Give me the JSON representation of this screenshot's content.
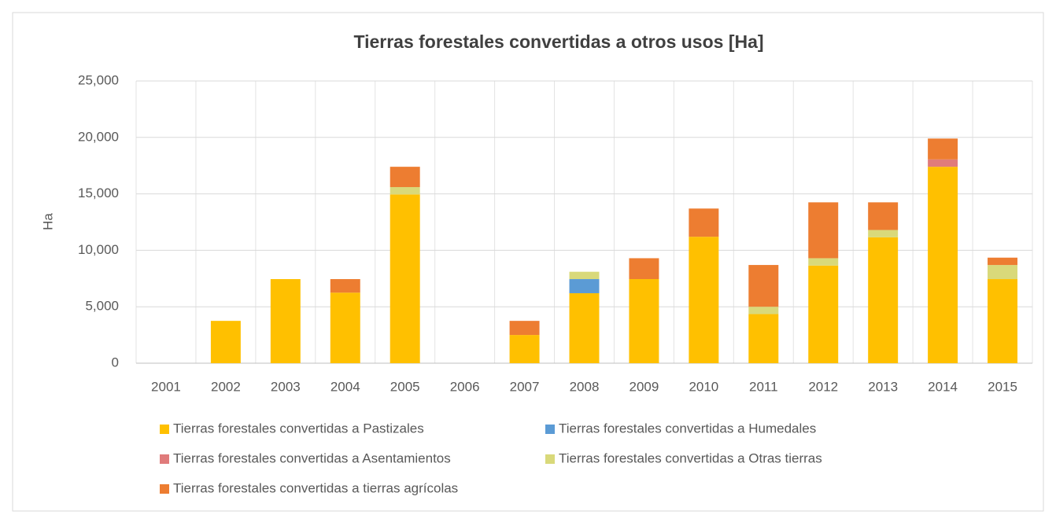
{
  "chart_data": {
    "type": "stacked_bar",
    "title": "Tierras forestales convertidas a otros usos [Ha]",
    "y_label": "Ha",
    "categories": [
      "2001",
      "2002",
      "2003",
      "2004",
      "2005",
      "2006",
      "2007",
      "2008",
      "2009",
      "2010",
      "2011",
      "2012",
      "2013",
      "2014",
      "2015"
    ],
    "series": [
      {
        "name": "Tierras forestales convertidas a Pastizales",
        "color": "#FFC000",
        "values": [
          0,
          3750,
          7450,
          6250,
          14950,
          0,
          2500,
          6200,
          7450,
          11200,
          4350,
          8650,
          11150,
          17400,
          7450
        ]
      },
      {
        "name": "Tierras forestales convertidas a Humedales",
        "color": "#5B9BD5",
        "values": [
          0,
          0,
          0,
          0,
          0,
          0,
          0,
          1250,
          0,
          0,
          0,
          0,
          0,
          0,
          0
        ]
      },
      {
        "name": "Tierras forestales convertidas a Asentamientos",
        "color": "#E07B7B",
        "values": [
          0,
          0,
          0,
          0,
          0,
          0,
          0,
          0,
          0,
          0,
          0,
          0,
          0,
          650,
          0
        ]
      },
      {
        "name": "Tierras forestales convertidas a Otras tierras",
        "color": "#D9D97A",
        "values": [
          0,
          0,
          0,
          0,
          650,
          0,
          0,
          650,
          0,
          0,
          650,
          650,
          650,
          0,
          1250
        ]
      },
      {
        "name": "Tierras forestales convertidas a tierras agrícolas",
        "color": "#ED7D31",
        "values": [
          0,
          0,
          0,
          1200,
          1800,
          0,
          1250,
          0,
          1850,
          2500,
          3700,
          4950,
          2450,
          1850,
          650
        ]
      }
    ],
    "ylim": [
      0,
      25000
    ],
    "yticks": [
      0,
      {
        "value": 5000,
        "label": "5,000"
      },
      {
        "value": 10000,
        "label": "10,000"
      },
      {
        "value": 15000,
        "label": "15,000"
      },
      {
        "value": 20000,
        "label": "20,000"
      },
      {
        "value": 25000,
        "label": "25,000"
      }
    ],
    "grid": true,
    "legend": "bottom"
  }
}
